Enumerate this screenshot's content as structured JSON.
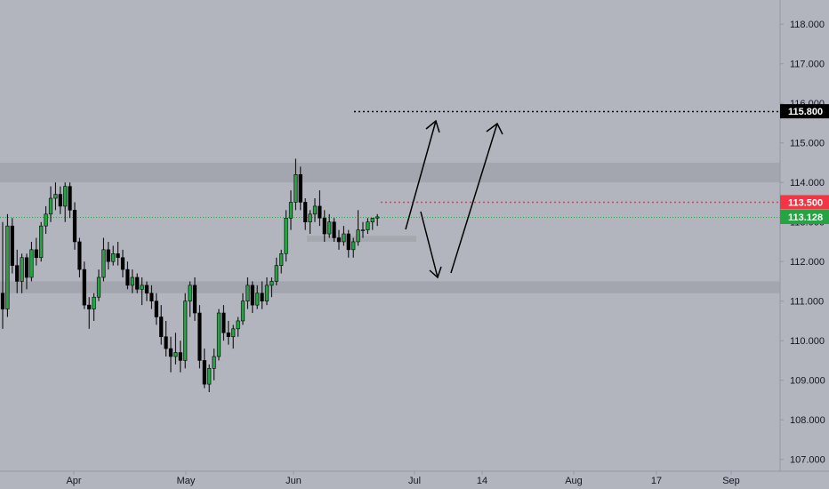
{
  "chart_data": {
    "type": "candlestick",
    "y_ticks": [
      "107.000",
      "108.000",
      "109.000",
      "110.000",
      "111.000",
      "112.000",
      "113.000",
      "114.000",
      "115.000",
      "116.000",
      "117.000",
      "118.000"
    ],
    "x_ticks": [
      "Apr",
      "May",
      "Jun",
      "Jul",
      "14",
      "Aug",
      "17",
      "Sep"
    ],
    "price_tags": [
      {
        "label": "115.800",
        "value": 115.8,
        "color": "#000000",
        "text_color": "#ffffff"
      },
      {
        "label": "113.500",
        "value": 113.5,
        "color": "#f23645",
        "text_color": "#ffffff"
      },
      {
        "label": "113.128",
        "value": 113.128,
        "color": "#26a343",
        "text_color": "#ffffff"
      }
    ],
    "zones": [
      {
        "from": 114.0,
        "to": 114.5
      },
      {
        "from": 111.2,
        "to": 111.5
      },
      {
        "from": 112.5,
        "to": 112.65
      }
    ],
    "horizontal_lines": [
      {
        "value": 115.8,
        "style": "dotted",
        "color": "#000000"
      },
      {
        "value": 113.5,
        "style": "dotted",
        "color": "#f23645"
      },
      {
        "value": 113.128,
        "style": "dotted",
        "color": "#26a343"
      }
    ],
    "colors": {
      "up": "#26a343",
      "down": "#000000",
      "background": "#b2b5be",
      "zone": "#a3a6ae"
    },
    "candles": [
      [
        111.2,
        113.0,
        110.3,
        110.8
      ],
      [
        110.8,
        113.2,
        110.6,
        112.9
      ],
      [
        112.9,
        113.1,
        111.7,
        111.9
      ],
      [
        111.9,
        112.3,
        111.2,
        111.5
      ],
      [
        111.5,
        112.2,
        111.2,
        112.1
      ],
      [
        112.1,
        112.2,
        111.3,
        111.6
      ],
      [
        111.6,
        112.5,
        111.5,
        112.3
      ],
      [
        112.3,
        112.6,
        111.9,
        112.1
      ],
      [
        112.1,
        113.0,
        112.0,
        112.9
      ],
      [
        112.9,
        113.4,
        112.7,
        113.2
      ],
      [
        113.2,
        113.9,
        113.0,
        113.6
      ],
      [
        113.6,
        114.0,
        113.3,
        113.7
      ],
      [
        113.7,
        113.9,
        113.2,
        113.4
      ],
      [
        113.4,
        114.0,
        113.0,
        113.9
      ],
      [
        113.9,
        114.0,
        113.1,
        113.3
      ],
      [
        113.3,
        113.5,
        112.3,
        112.5
      ],
      [
        112.5,
        112.6,
        111.6,
        111.8
      ],
      [
        111.8,
        112.0,
        110.8,
        110.9
      ],
      [
        110.9,
        111.1,
        110.3,
        110.8
      ],
      [
        110.8,
        111.2,
        110.5,
        111.1
      ],
      [
        111.1,
        111.8,
        111.0,
        111.6
      ],
      [
        111.6,
        112.6,
        111.5,
        112.3
      ],
      [
        112.3,
        112.5,
        111.8,
        112.0
      ],
      [
        112.0,
        112.4,
        111.9,
        112.2
      ],
      [
        112.2,
        112.5,
        111.9,
        112.1
      ],
      [
        112.1,
        112.3,
        111.6,
        111.8
      ],
      [
        111.8,
        112.0,
        111.3,
        111.4
      ],
      [
        111.4,
        111.8,
        111.2,
        111.6
      ],
      [
        111.6,
        111.7,
        111.2,
        111.3
      ],
      [
        111.3,
        111.6,
        110.9,
        111.4
      ],
      [
        111.4,
        111.5,
        111.0,
        111.2
      ],
      [
        111.2,
        111.4,
        110.8,
        111.0
      ],
      [
        111.0,
        111.2,
        110.4,
        110.6
      ],
      [
        110.6,
        110.9,
        109.9,
        110.1
      ],
      [
        110.1,
        110.5,
        109.6,
        109.8
      ],
      [
        109.8,
        110.1,
        109.2,
        109.6
      ],
      [
        109.6,
        110.2,
        109.4,
        109.7
      ],
      [
        109.7,
        110.0,
        109.2,
        109.5
      ],
      [
        109.5,
        111.2,
        109.3,
        111.0
      ],
      [
        111.0,
        111.5,
        110.6,
        111.4
      ],
      [
        111.4,
        111.6,
        110.5,
        110.7
      ],
      [
        110.7,
        110.9,
        109.3,
        109.5
      ],
      [
        109.5,
        109.8,
        108.8,
        108.9
      ],
      [
        108.9,
        109.4,
        108.7,
        109.3
      ],
      [
        109.3,
        109.8,
        109.0,
        109.6
      ],
      [
        109.6,
        110.8,
        109.5,
        110.7
      ],
      [
        110.7,
        110.9,
        110.0,
        110.2
      ],
      [
        110.2,
        110.5,
        109.9,
        110.1
      ],
      [
        110.1,
        110.4,
        109.8,
        110.3
      ],
      [
        110.3,
        110.6,
        110.1,
        110.5
      ],
      [
        110.5,
        111.2,
        110.4,
        111.0
      ],
      [
        111.0,
        111.6,
        110.8,
        111.4
      ],
      [
        111.4,
        111.5,
        110.7,
        110.9
      ],
      [
        110.9,
        111.4,
        110.8,
        111.2
      ],
      [
        111.2,
        111.5,
        110.8,
        111.0
      ],
      [
        111.0,
        111.6,
        110.9,
        111.4
      ],
      [
        111.4,
        111.6,
        111.1,
        111.5
      ],
      [
        111.5,
        112.1,
        111.4,
        111.9
      ],
      [
        111.9,
        112.3,
        111.7,
        112.2
      ],
      [
        112.2,
        113.3,
        112.0,
        113.1
      ],
      [
        113.1,
        113.8,
        112.8,
        113.5
      ],
      [
        113.5,
        114.6,
        113.3,
        114.2
      ],
      [
        114.2,
        114.4,
        113.3,
        113.5
      ],
      [
        113.5,
        113.6,
        112.8,
        113.0
      ],
      [
        113.0,
        113.3,
        112.7,
        113.2
      ],
      [
        113.2,
        113.6,
        113.0,
        113.4
      ],
      [
        113.4,
        113.8,
        112.9,
        113.1
      ],
      [
        113.1,
        113.3,
        112.5,
        112.7
      ],
      [
        112.7,
        113.2,
        112.6,
        113.0
      ],
      [
        113.0,
        113.1,
        112.5,
        112.6
      ],
      [
        112.6,
        112.8,
        112.3,
        112.5
      ],
      [
        112.5,
        112.9,
        112.4,
        112.7
      ],
      [
        112.7,
        112.8,
        112.1,
        112.3
      ],
      [
        112.3,
        112.6,
        112.1,
        112.5
      ],
      [
        112.5,
        113.3,
        112.4,
        112.8
      ],
      [
        112.8,
        113.0,
        112.6,
        112.8
      ],
      [
        112.8,
        113.1,
        112.7,
        113.0
      ],
      [
        113.0,
        113.1,
        112.8,
        113.1
      ],
      [
        113.1,
        113.2,
        112.9,
        113.13
      ]
    ]
  }
}
